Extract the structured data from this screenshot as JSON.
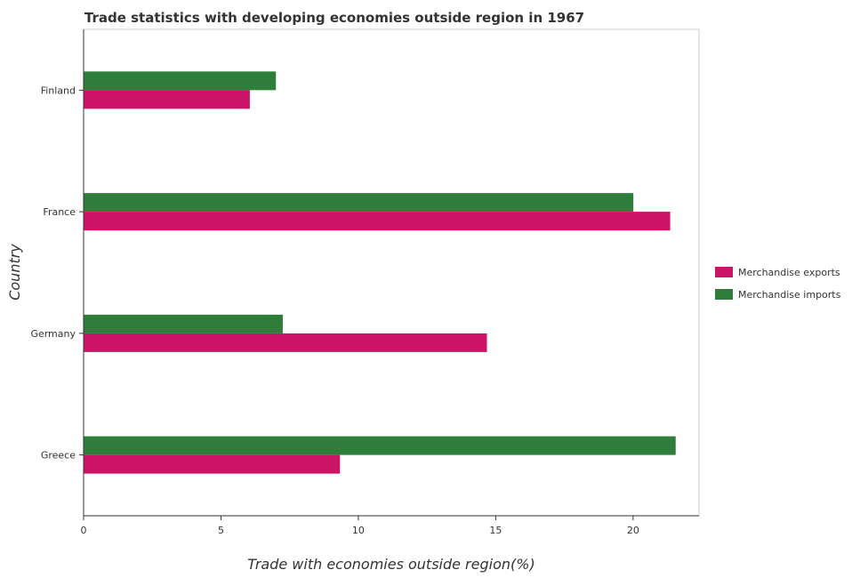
{
  "chart_data": {
    "type": "bar",
    "orientation": "horizontal",
    "title": "Trade statistics with developing economies outside region in 1967",
    "xlabel": "Trade with economies outside region(%)",
    "ylabel": "Country",
    "categories": [
      "Finland",
      "France",
      "Germany",
      "Greece"
    ],
    "series": [
      {
        "name": "Merchandise exports",
        "color": "#cc1466",
        "values": [
          6.05,
          21.35,
          14.68,
          9.33
        ]
      },
      {
        "name": "Merchandise imports",
        "color": "#2e7d3a",
        "values": [
          7.0,
          20.01,
          7.25,
          21.55
        ]
      }
    ],
    "xlim": [
      0,
      22.4
    ],
    "xticks": [
      0,
      5,
      10,
      15,
      20
    ],
    "grid": false,
    "legend_position": "right"
  }
}
